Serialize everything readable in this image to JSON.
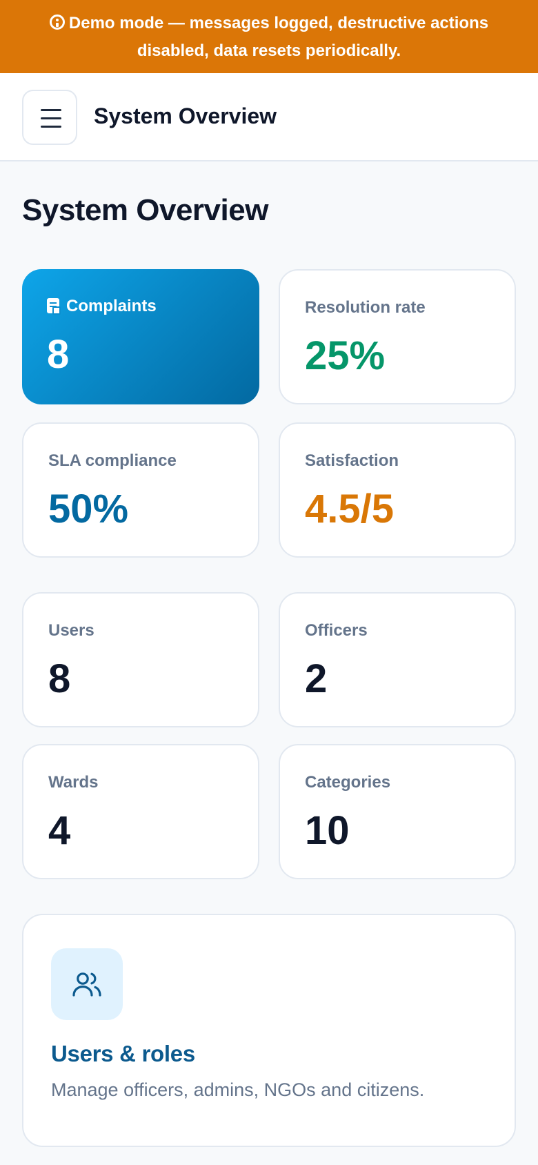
{
  "banner": {
    "icon": "info-icon",
    "text": "Demo mode — messages logged, destructive actions disabled, data resets periodically."
  },
  "header": {
    "menu_icon": "hamburger-menu-icon",
    "title": "System Overview"
  },
  "page": {
    "title": "System Overview"
  },
  "stats": [
    {
      "id": "complaints",
      "label": "Complaints",
      "value": "8",
      "icon": "document-icon",
      "accent": "#0ea5e9"
    },
    {
      "id": "resolution-rate",
      "label": "Resolution rate",
      "value": "25%",
      "color": "#059669"
    },
    {
      "id": "sla-compliance",
      "label": "SLA compliance",
      "value": "50%",
      "color": "#0369a1"
    },
    {
      "id": "satisfaction",
      "label": "Satisfaction",
      "value": "4.5/5",
      "color": "#d97706"
    },
    {
      "id": "users",
      "label": "Users",
      "value": "8",
      "color": "#0f172a"
    },
    {
      "id": "officers",
      "label": "Officers",
      "value": "2",
      "color": "#0f172a"
    },
    {
      "id": "wards",
      "label": "Wards",
      "value": "4",
      "color": "#0f172a"
    },
    {
      "id": "categories",
      "label": "Categories",
      "value": "10",
      "color": "#0f172a"
    }
  ],
  "feature": {
    "icon": "users-icon",
    "title": "Users & roles",
    "description": "Manage officers, admins, NGOs and citizens."
  },
  "colors": {
    "banner_bg": "#db7607",
    "brand": "#0369a1"
  }
}
